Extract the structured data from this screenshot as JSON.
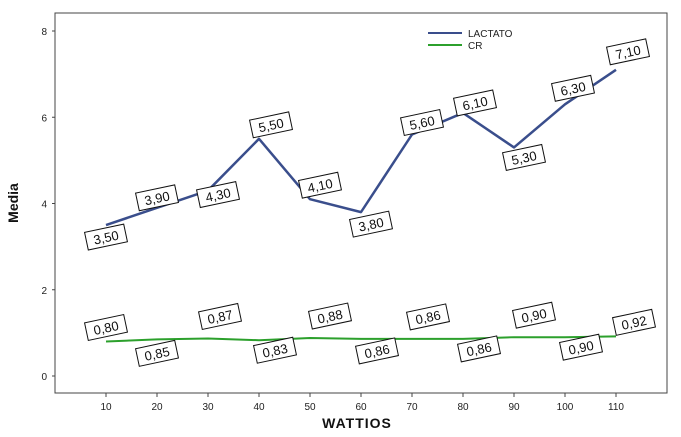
{
  "chart_data": {
    "type": "line",
    "xlabel": "WATTIOS",
    "ylabel": "Media",
    "x": [
      10,
      20,
      30,
      40,
      50,
      60,
      70,
      80,
      90,
      100,
      110
    ],
    "x_ticks": [
      "10",
      "20",
      "30",
      "40",
      "50",
      "60",
      "70",
      "80",
      "90",
      "100",
      "110"
    ],
    "y_ticks": [
      "0",
      "2",
      "4",
      "6",
      "8"
    ],
    "ylim": [
      0,
      8
    ],
    "xlim": [
      0,
      120
    ],
    "grid": false,
    "legend_position": "top-right",
    "series": [
      {
        "name": "LACTATO",
        "color": "#3a4e8c",
        "values": [
          3.5,
          3.9,
          4.3,
          5.5,
          4.1,
          3.8,
          5.6,
          6.1,
          5.3,
          6.3,
          7.1
        ],
        "labels": [
          "3,50",
          "3,90",
          "4,30",
          "5,50",
          "4,10",
          "3,80",
          "5,60",
          "6,10",
          "5,30",
          "6,30",
          "7,10"
        ]
      },
      {
        "name": "CR",
        "color": "#2ca02c",
        "values": [
          0.8,
          0.85,
          0.87,
          0.83,
          0.88,
          0.86,
          0.86,
          0.86,
          0.9,
          0.9,
          0.92
        ],
        "labels": [
          "0,80",
          "0,85",
          "0,87",
          "0,83",
          "0,88",
          "0,86",
          "0,86",
          "0,86",
          "0,90",
          "0,90",
          "0,92"
        ]
      }
    ]
  }
}
